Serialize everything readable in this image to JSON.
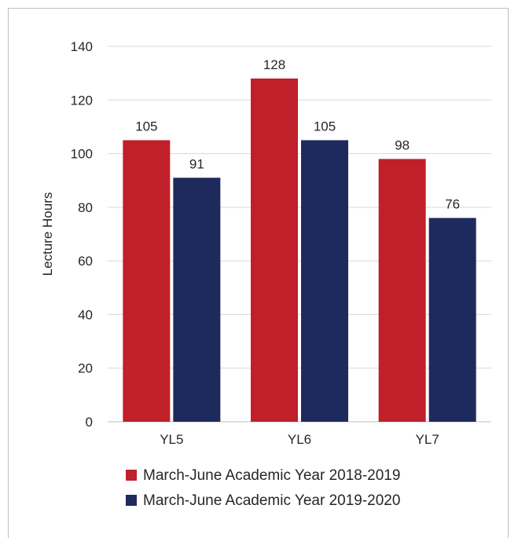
{
  "chart_data": {
    "type": "bar",
    "title": "",
    "xlabel": "",
    "ylabel": "Lecture Hours",
    "categories": [
      "YL5",
      "YL6",
      "YL7"
    ],
    "series": [
      {
        "name": "March-June Academic Year 2018-2019",
        "color": "#c0202a",
        "values": [
          105,
          128,
          98
        ]
      },
      {
        "name": "March-June Academic Year 2019-2020",
        "color": "#1f2a5c",
        "values": [
          91,
          105,
          76
        ]
      }
    ],
    "ylim": [
      0,
      140
    ],
    "yticks": [
      0,
      20,
      40,
      60,
      80,
      100,
      120,
      140
    ],
    "grid": true,
    "legend_position": "bottom"
  }
}
